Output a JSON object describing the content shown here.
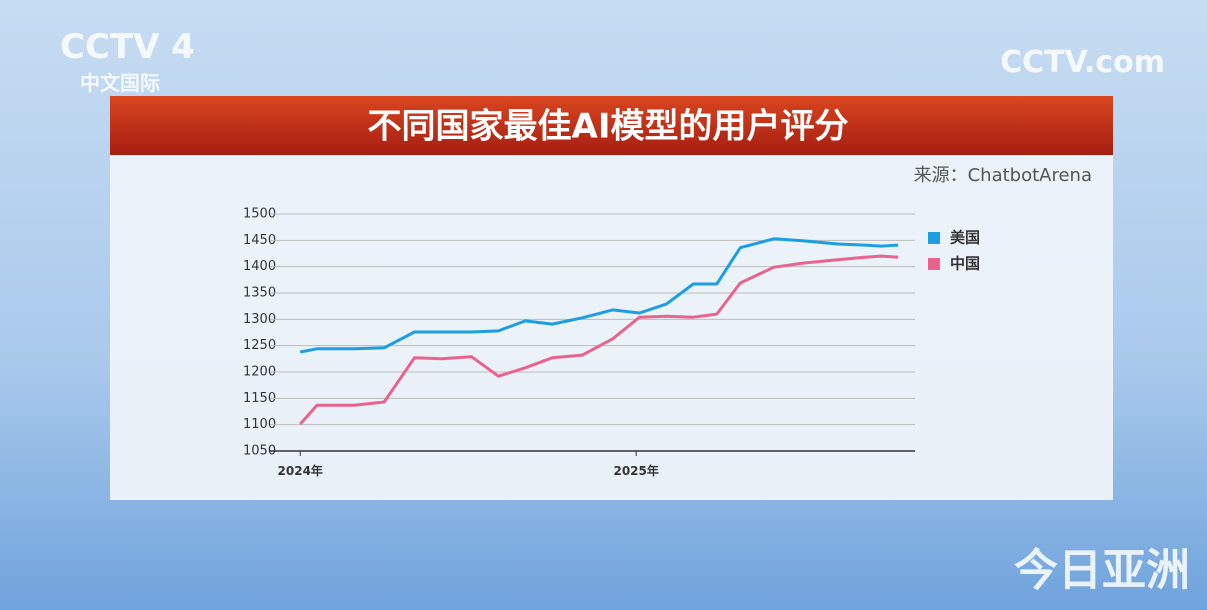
{
  "broadcast": {
    "channel": "CCTV 4",
    "channel_subtitle": "中文国际",
    "site": "CCTV.com",
    "program": "今日亚洲"
  },
  "chart_data": {
    "type": "line",
    "title": "不同国家最佳AI模型的用户评分",
    "source": "来源：ChatbotArena",
    "x": [
      2024.0,
      2024.05,
      2024.16,
      2024.25,
      2024.34,
      2024.42,
      2024.51,
      2024.59,
      2024.67,
      2024.75,
      2024.84,
      2024.93,
      2025.01,
      2025.09,
      2025.17,
      2025.24,
      2025.31,
      2025.41,
      2025.5,
      2025.6,
      2025.68,
      2025.73,
      2025.78
    ],
    "series": [
      {
        "name": "美国",
        "color": "#1e9ee2",
        "values": [
          1238,
          1244,
          1244,
          1246,
          1276,
          1276,
          1276,
          1278,
          1297,
          1291,
          1303,
          1318,
          1312,
          1329,
          1367,
          1367,
          1436,
          1453,
          1449,
          1443,
          1441,
          1439,
          1441
        ]
      },
      {
        "name": "中国",
        "color": "#e9638f",
        "values": [
          1101,
          1137,
          1137,
          1143,
          1227,
          1225,
          1229,
          1192,
          1208,
          1227,
          1232,
          1263,
          1304,
          1306,
          1304,
          1310,
          1369,
          1399,
          1407,
          1413,
          1418,
          1420,
          1418
        ]
      }
    ],
    "xlim": [
      2023.91,
      2025.83
    ],
    "xticks": [
      {
        "value": 2024,
        "label": "2024年"
      },
      {
        "value": 2025,
        "label": "2025年"
      }
    ],
    "ylim": [
      1050,
      1500
    ],
    "yticks": [
      1050,
      1100,
      1150,
      1200,
      1250,
      1300,
      1350,
      1400,
      1450,
      1500
    ],
    "grid": true,
    "legend": "right"
  }
}
